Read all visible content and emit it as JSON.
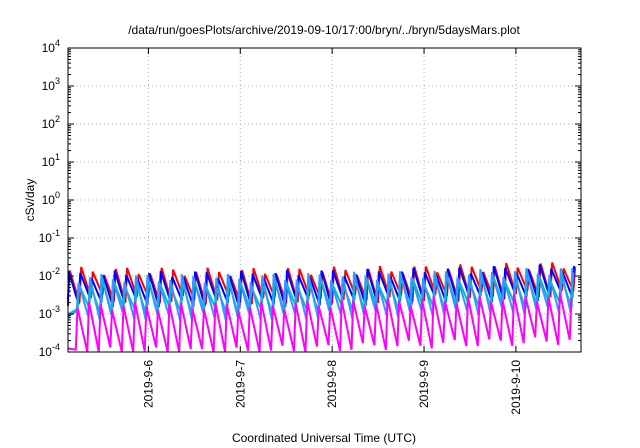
{
  "chart_data": {
    "type": "line",
    "title": "/data/run/goesPlots/archive/2019-09-10/17:00/bryn/../bryn/5daysMars.plot",
    "xlabel": "Coordinated Universal Time (UTC)",
    "ylabel": "cSv/day",
    "y_scale": "log",
    "ylim": [
      0.0001,
      10000
    ],
    "xlim": [
      "2019-09-05T03:00",
      "2019-09-10T17:00"
    ],
    "x_ticks": [
      "2019-9-6",
      "2019-9-7",
      "2019-9-8",
      "2019-9-9",
      "2019-9-10"
    ],
    "y_tick_exponents": [
      "-4",
      "-3",
      "-2",
      "-1",
      "0",
      "1",
      "2",
      "3",
      "4"
    ],
    "grid": true,
    "legend": "none",
    "sawtooth_period_hours": 3,
    "series": [
      {
        "color": "#ff0000",
        "envelope_low": [
          0.0025,
          0.0022,
          0.0025,
          0.0035
        ],
        "envelope_high": [
          0.014,
          0.013,
          0.015,
          0.02
        ]
      },
      {
        "color": "#0000ff",
        "envelope_low": [
          0.002,
          0.0018,
          0.0022,
          0.003
        ],
        "envelope_high": [
          0.011,
          0.011,
          0.013,
          0.017
        ]
      },
      {
        "color": "#00bfbf",
        "envelope_low": [
          0.0012,
          0.0011,
          0.0014,
          0.0018
        ],
        "envelope_high": [
          0.0065,
          0.006,
          0.008,
          0.01
        ]
      },
      {
        "color": "#3399ff",
        "envelope_low": [
          0.0009,
          0.0008,
          0.001,
          0.0013
        ],
        "envelope_high": [
          0.009,
          0.009,
          0.011,
          0.014
        ]
      },
      {
        "color": "#ff00ff",
        "envelope_low": [
          0.0001,
          0.0001,
          0.00015,
          0.0002
        ],
        "envelope_high": [
          0.0017,
          0.0016,
          0.0022,
          0.003
        ]
      }
    ]
  }
}
